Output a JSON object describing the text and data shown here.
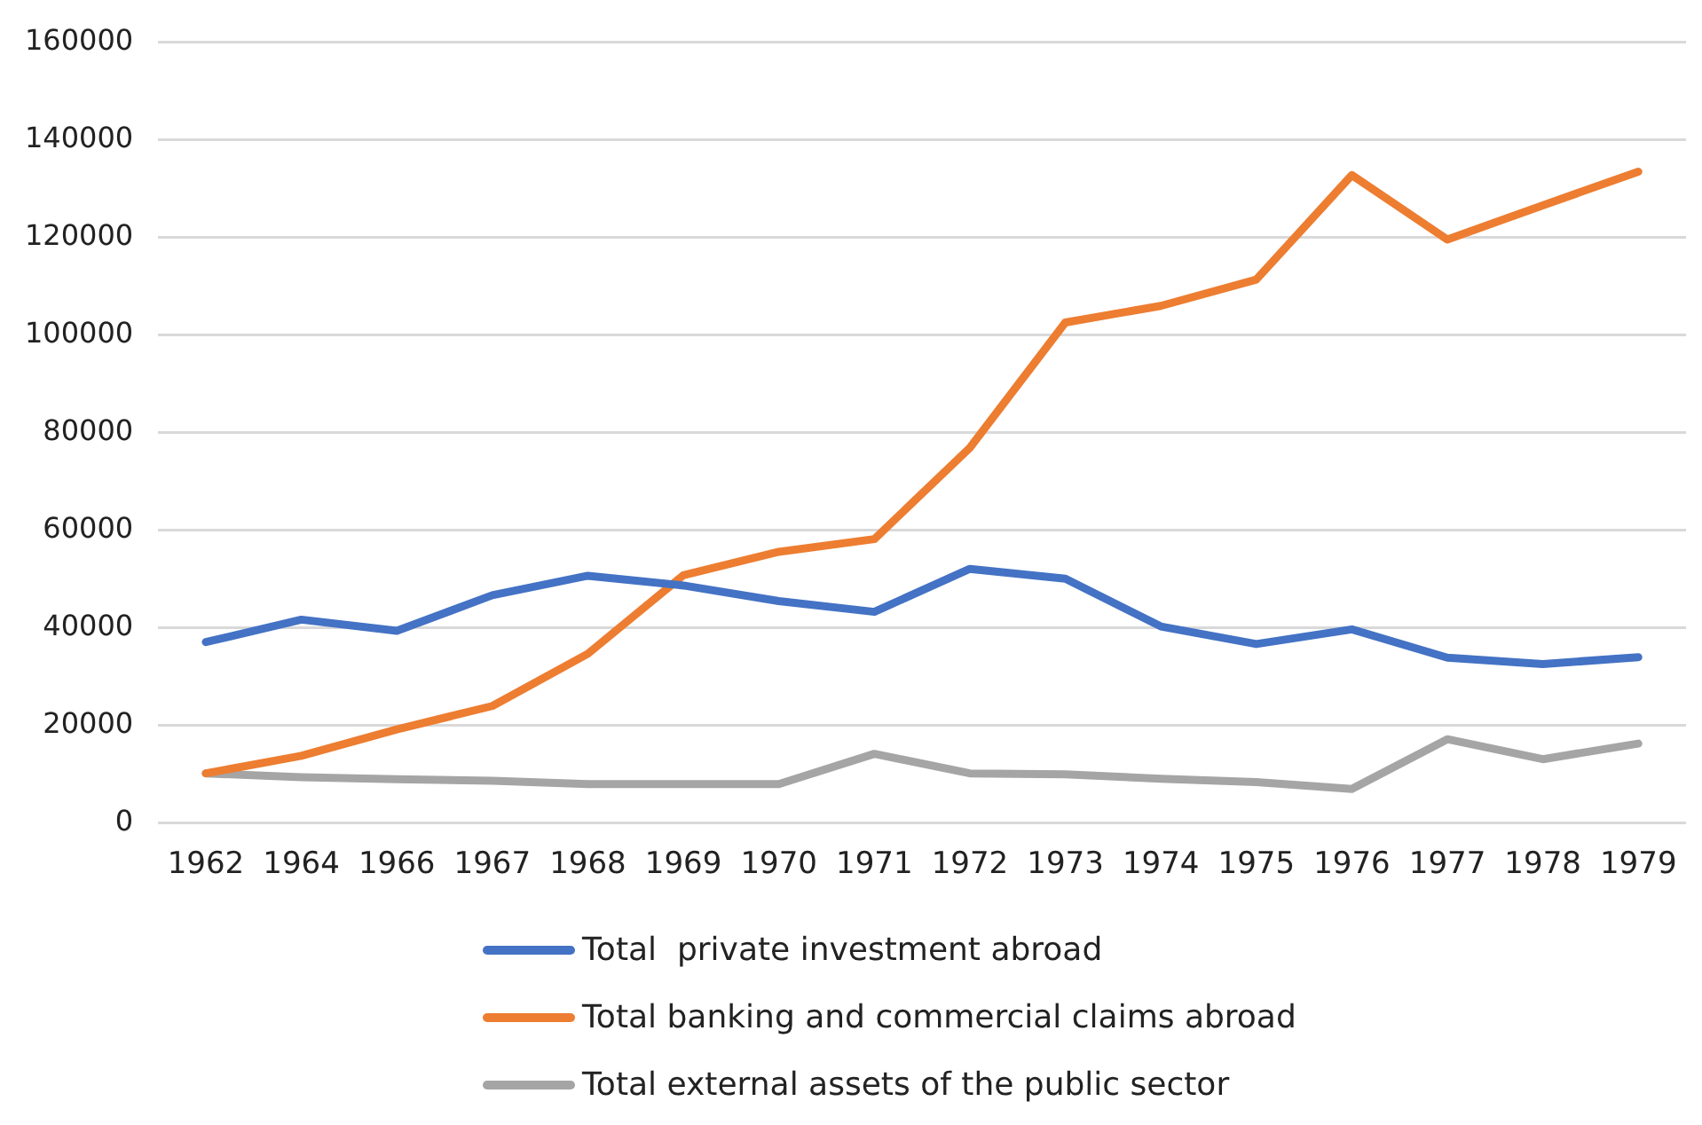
{
  "chart_data": {
    "type": "line",
    "categories": [
      "1962",
      "1964",
      "1966",
      "1967",
      "1968",
      "1969",
      "1970",
      "1971",
      "1972",
      "1973",
      "1974",
      "1975",
      "1976",
      "1977",
      "1978",
      "1979"
    ],
    "series": [
      {
        "name": "Total  private investment abroad",
        "color": "#4472c4",
        "values": [
          37000,
          41600,
          39300,
          46600,
          50600,
          48600,
          45400,
          43200,
          52000,
          50000,
          40200,
          36600,
          39600,
          33800,
          32500,
          33900
        ]
      },
      {
        "name": "Total banking and commercial claims abroad",
        "color": "#ed7d31",
        "values": [
          10100,
          13700,
          19100,
          23900,
          34600,
          50700,
          55500,
          58100,
          76800,
          102500,
          105900,
          111300,
          132700,
          119500,
          126500,
          133400
        ]
      },
      {
        "name": "Total external assets of the public sector",
        "color": "#a5a5a5",
        "values": [
          10100,
          9300,
          8900,
          8600,
          7900,
          7900,
          7900,
          14100,
          10100,
          9900,
          9000,
          8300,
          6900,
          17100,
          13000,
          16200
        ]
      }
    ],
    "ylim": [
      0,
      160000
    ],
    "yticks": [
      0,
      20000,
      40000,
      60000,
      80000,
      100000,
      120000,
      140000,
      160000
    ],
    "grid": "y",
    "legend": "bottom",
    "marker": "none",
    "line_style": "solid"
  }
}
